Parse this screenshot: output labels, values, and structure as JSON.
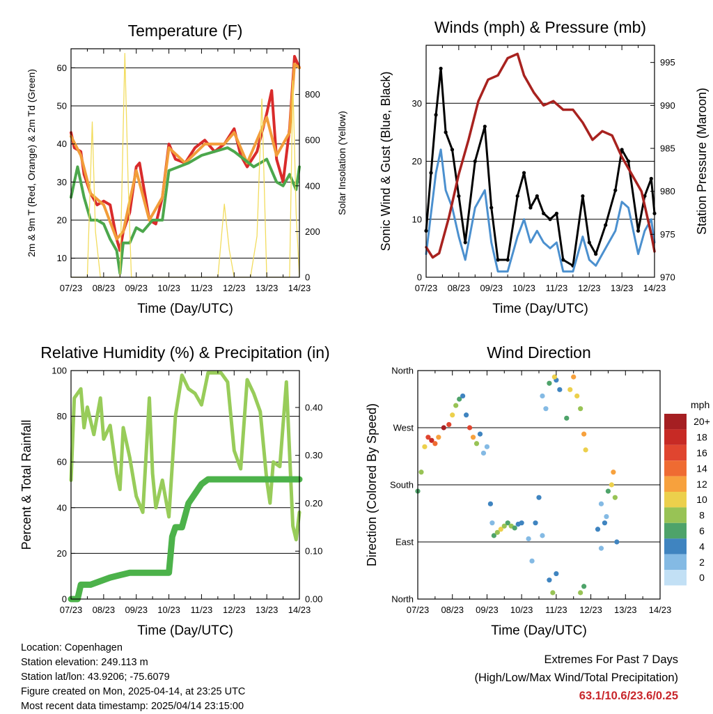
{
  "chart_data": [
    {
      "id": "temp",
      "type": "line",
      "title": "Temperature (F)",
      "xlabel": "Time (Day/UTC)",
      "ylabel_left": "2m & 9m T (Red, Orange) & 2m Td (Green)",
      "ylabel_right": "Solar Insolation (Yellow)",
      "categories": [
        "07/23",
        "08/23",
        "09/23",
        "10/23",
        "11/23",
        "12/23",
        "13/23",
        "14/23"
      ],
      "xlim": [
        0,
        7
      ],
      "ylim": [
        5,
        65
      ],
      "yticks": [
        10,
        20,
        30,
        40,
        50,
        60
      ],
      "ylim_right": [
        0,
        1000
      ],
      "yticks_right": [
        0,
        200,
        400,
        600,
        800
      ],
      "series": [
        {
          "name": "2m T",
          "color": "#d92b2b",
          "x": [
            0,
            0.1,
            0.3,
            0.4,
            0.6,
            0.8,
            1.0,
            1.2,
            1.4,
            1.5,
            1.6,
            1.8,
            2.0,
            2.1,
            2.2,
            2.4,
            2.6,
            2.8,
            3.0,
            3.2,
            3.5,
            3.8,
            4.1,
            4.4,
            4.7,
            5.0,
            5.2,
            5.4,
            5.7,
            6.0,
            6.15,
            6.3,
            6.5,
            6.7,
            6.85,
            7.0
          ],
          "y": [
            43,
            39,
            38,
            32,
            27,
            24,
            25,
            24,
            15,
            12,
            17,
            22,
            34,
            35,
            30,
            20,
            19,
            26,
            40,
            36,
            35,
            39,
            41,
            38,
            40,
            44,
            37,
            34,
            38,
            48,
            54,
            36,
            30,
            44,
            63,
            60
          ]
        },
        {
          "name": "9m T",
          "color": "#f29d3a",
          "x": [
            0,
            0.3,
            0.6,
            1.0,
            1.4,
            1.6,
            2.0,
            2.4,
            2.8,
            3.0,
            3.5,
            4.1,
            4.7,
            5.0,
            5.4,
            6.0,
            6.3,
            6.7,
            6.85,
            7.0
          ],
          "y": [
            42,
            37,
            27,
            24,
            15,
            17,
            33,
            20,
            26,
            39,
            35,
            40,
            40,
            43,
            35,
            47,
            37,
            43,
            61,
            60
          ]
        },
        {
          "name": "2m Td",
          "color": "#4ca74c",
          "x": [
            0,
            0.2,
            0.4,
            0.6,
            0.8,
            1.0,
            1.2,
            1.4,
            1.5,
            1.6,
            1.8,
            2.0,
            2.2,
            2.5,
            2.8,
            3.0,
            3.3,
            3.6,
            4.0,
            4.4,
            4.8,
            5.0,
            5.3,
            5.6,
            6.0,
            6.3,
            6.5,
            6.7,
            6.9,
            7.0
          ],
          "y": [
            26,
            34,
            26,
            20,
            20,
            19,
            15,
            12,
            6,
            14,
            14,
            18,
            17,
            20,
            20,
            33,
            34,
            35,
            37,
            38,
            39,
            38,
            36,
            34,
            36,
            30,
            29,
            32,
            28,
            34
          ]
        },
        {
          "name": "Solar Insolation",
          "color": "#f2dc5d",
          "axis": "right",
          "x": [
            0,
            0.3,
            0.5,
            0.65,
            0.75,
            0.9,
            1.1,
            1.3,
            1.5,
            1.65,
            1.75,
            1.85,
            2.05,
            2.2,
            2.5,
            3.0,
            3.5,
            4.0,
            4.5,
            4.7,
            4.85,
            5.0,
            5.5,
            5.7,
            5.85,
            6.0,
            6.3,
            6.5,
            6.7,
            6.8,
            6.9,
            7.0
          ],
          "y": [
            0,
            0,
            0,
            680,
            200,
            0,
            0,
            0,
            0,
            980,
            420,
            0,
            0,
            0,
            0,
            0,
            0,
            0,
            0,
            320,
            120,
            0,
            0,
            180,
            780,
            0,
            0,
            0,
            0,
            860,
            280,
            0
          ]
        }
      ]
    },
    {
      "id": "wind",
      "type": "line",
      "title": "Winds (mph) & Pressure (mb)",
      "xlabel": "Time (Day/UTC)",
      "ylabel_left": "Sonic Wind & Gust (Blue, Black)",
      "ylabel_right": "Station Pressure (Maroon)",
      "categories": [
        "07/23",
        "08/23",
        "09/23",
        "10/23",
        "11/23",
        "12/23",
        "13/23",
        "14/23"
      ],
      "xlim": [
        0,
        7
      ],
      "ylim": [
        0,
        40
      ],
      "yticks": [
        0,
        10,
        20,
        30
      ],
      "ylim_right": [
        970,
        997
      ],
      "yticks_right": [
        970,
        975,
        980,
        985,
        990,
        995
      ],
      "series": [
        {
          "name": "Gust",
          "color": "#000000",
          "x": [
            0,
            0.15,
            0.3,
            0.45,
            0.6,
            0.8,
            1.0,
            1.2,
            1.5,
            1.8,
            2.0,
            2.2,
            2.5,
            2.8,
            3.0,
            3.2,
            3.4,
            3.6,
            3.8,
            4.0,
            4.2,
            4.5,
            4.8,
            5.0,
            5.2,
            5.5,
            5.8,
            6.0,
            6.2,
            6.5,
            6.7,
            6.9,
            7.0
          ],
          "y": [
            8,
            18,
            28,
            36,
            25,
            22,
            14,
            6,
            20,
            26,
            12,
            3,
            3,
            14,
            18,
            12,
            14,
            11,
            10,
            11,
            3,
            2,
            14,
            6,
            4,
            9,
            15,
            22,
            20,
            8,
            14,
            17,
            11
          ]
        },
        {
          "name": "Wind",
          "color": "#4b90cf",
          "x": [
            0,
            0.15,
            0.3,
            0.45,
            0.6,
            0.8,
            1.0,
            1.2,
            1.5,
            1.8,
            2.0,
            2.2,
            2.5,
            2.8,
            3.0,
            3.2,
            3.4,
            3.6,
            3.8,
            4.0,
            4.2,
            4.5,
            4.8,
            5.0,
            5.2,
            5.5,
            5.8,
            6.0,
            6.2,
            6.5,
            6.7,
            6.9,
            7.0
          ],
          "y": [
            4,
            11,
            18,
            22,
            15,
            12,
            7,
            3,
            12,
            15,
            6,
            1,
            1,
            7,
            10,
            6,
            8,
            6,
            5,
            6,
            1,
            1,
            7,
            3,
            2,
            5,
            8,
            13,
            12,
            4,
            8,
            10,
            6
          ]
        },
        {
          "name": "Pressure",
          "color": "#a8221f",
          "axis": "right",
          "x": [
            0,
            0.2,
            0.4,
            0.7,
            1.0,
            1.3,
            1.6,
            1.9,
            2.2,
            2.5,
            2.8,
            3.0,
            3.3,
            3.6,
            3.9,
            4.2,
            4.5,
            4.8,
            5.1,
            5.4,
            5.7,
            6.0,
            6.3,
            6.6,
            6.9,
            7.0
          ],
          "y": [
            973.5,
            972.3,
            972.8,
            977,
            982,
            986,
            990.5,
            993,
            993.5,
            995.5,
            996,
            993.5,
            991.5,
            990,
            990.5,
            989.5,
            989.5,
            988,
            986,
            987,
            986.5,
            984,
            982,
            980,
            975,
            973
          ]
        }
      ]
    },
    {
      "id": "rh",
      "type": "line",
      "title": "Relative Humidity (%) & Precipitation (in)",
      "xlabel": "Time (Day/UTC)",
      "ylabel_left": "Percent & Total Rainfall",
      "categories": [
        "07/23",
        "08/23",
        "09/23",
        "10/23",
        "11/23",
        "12/23",
        "13/23",
        "14/23"
      ],
      "xlim": [
        0,
        7
      ],
      "ylim": [
        0,
        100
      ],
      "yticks": [
        0,
        20,
        40,
        60,
        80,
        100
      ],
      "ylim_right": [
        0,
        0.477
      ],
      "yticks_right": [
        "0.00",
        "0.10",
        "0.20",
        "0.30",
        "0.40"
      ],
      "series": [
        {
          "name": "Relative Humidity",
          "color": "#98cc5a",
          "x": [
            0,
            0.1,
            0.3,
            0.4,
            0.5,
            0.7,
            0.9,
            1.0,
            1.2,
            1.4,
            1.5,
            1.6,
            1.8,
            2.0,
            2.2,
            2.4,
            2.5,
            2.6,
            2.8,
            3.0,
            3.2,
            3.4,
            3.6,
            3.8,
            4.0,
            4.2,
            4.4,
            4.6,
            4.8,
            5.0,
            5.2,
            5.4,
            5.6,
            5.8,
            6.0,
            6.1,
            6.2,
            6.4,
            6.6,
            6.8,
            6.9,
            7.0
          ],
          "y": [
            52,
            88,
            92,
            75,
            84,
            72,
            88,
            70,
            76,
            55,
            48,
            75,
            62,
            45,
            38,
            88,
            55,
            40,
            52,
            36,
            80,
            98,
            92,
            90,
            85,
            99,
            99,
            99,
            95,
            65,
            57,
            96,
            90,
            82,
            52,
            42,
            60,
            58,
            95,
            32,
            26,
            38
          ]
        },
        {
          "name": "Total Rainfall",
          "color": "#4cb24a",
          "axis": "right",
          "x": [
            0,
            0.2,
            0.3,
            0.6,
            1.0,
            1.2,
            1.5,
            1.8,
            2.2,
            2.5,
            2.8,
            3.0,
            3.1,
            3.2,
            3.4,
            3.6,
            3.8,
            4.0,
            4.2,
            4.5,
            5.0,
            5.5,
            6.0,
            6.5,
            7.0
          ],
          "y": [
            0,
            0,
            0.03,
            0.03,
            0.04,
            0.045,
            0.05,
            0.055,
            0.055,
            0.055,
            0.055,
            0.055,
            0.13,
            0.15,
            0.15,
            0.2,
            0.22,
            0.24,
            0.25,
            0.25,
            0.25,
            0.25,
            0.25,
            0.25,
            0.25
          ]
        }
      ]
    },
    {
      "id": "dir",
      "type": "scatter",
      "title": "Wind Direction",
      "xlabel": "Time (Day/UTC)",
      "ylabel_left": "Direction (Colored By Speed)",
      "categories": [
        "07/23",
        "08/23",
        "09/23",
        "10/23",
        "11/23",
        "12/23",
        "13/23",
        "14/23"
      ],
      "xlim": [
        0,
        7
      ],
      "ylim": [
        0,
        360
      ],
      "yticklabels": [
        "North",
        "East",
        "South",
        "West",
        "North"
      ],
      "yticks": [
        0,
        90,
        180,
        270,
        360
      ],
      "legend_title": "mph",
      "legend_labels": [
        "20+",
        "18",
        "16",
        "14",
        "12",
        "10",
        "8",
        "6",
        "4",
        "2",
        "0"
      ],
      "legend_colors": [
        "#a51f22",
        "#c72a25",
        "#e0452f",
        "#ef6b32",
        "#f7a13d",
        "#ecd04c",
        "#98c355",
        "#4ea36a",
        "#3f84c0",
        "#84bae4",
        "#c2e0f5"
      ],
      "points": [
        {
          "x": 0,
          "y": 170,
          "s": 6
        },
        {
          "x": 0.1,
          "y": 200,
          "s": 8
        },
        {
          "x": 0.2,
          "y": 240,
          "s": 10
        },
        {
          "x": 0.3,
          "y": 255,
          "s": 16
        },
        {
          "x": 0.4,
          "y": 250,
          "s": 18
        },
        {
          "x": 0.5,
          "y": 245,
          "s": 14
        },
        {
          "x": 0.6,
          "y": 255,
          "s": 12
        },
        {
          "x": 0.75,
          "y": 270,
          "s": 20
        },
        {
          "x": 0.9,
          "y": 275,
          "s": 16
        },
        {
          "x": 1.0,
          "y": 290,
          "s": 10
        },
        {
          "x": 1.1,
          "y": 305,
          "s": 8
        },
        {
          "x": 1.2,
          "y": 315,
          "s": 6
        },
        {
          "x": 1.3,
          "y": 320,
          "s": 4
        },
        {
          "x": 1.4,
          "y": 290,
          "s": 4
        },
        {
          "x": 1.5,
          "y": 270,
          "s": 16
        },
        {
          "x": 1.6,
          "y": 255,
          "s": 12
        },
        {
          "x": 1.7,
          "y": 245,
          "s": 8
        },
        {
          "x": 1.8,
          "y": 260,
          "s": 4
        },
        {
          "x": 1.9,
          "y": 230,
          "s": 2
        },
        {
          "x": 2.0,
          "y": 240,
          "s": 2
        },
        {
          "x": 2.1,
          "y": 150,
          "s": 4
        },
        {
          "x": 2.15,
          "y": 120,
          "s": 2
        },
        {
          "x": 2.2,
          "y": 100,
          "s": 6
        },
        {
          "x": 2.3,
          "y": 105,
          "s": 8
        },
        {
          "x": 2.4,
          "y": 110,
          "s": 10
        },
        {
          "x": 2.5,
          "y": 115,
          "s": 8
        },
        {
          "x": 2.6,
          "y": 120,
          "s": 6
        },
        {
          "x": 2.7,
          "y": 115,
          "s": 8
        },
        {
          "x": 2.8,
          "y": 112,
          "s": 6
        },
        {
          "x": 2.9,
          "y": 118,
          "s": 4
        },
        {
          "x": 3.0,
          "y": 120,
          "s": 4
        },
        {
          "x": 3.2,
          "y": 95,
          "s": 2
        },
        {
          "x": 3.3,
          "y": 60,
          "s": 2
        },
        {
          "x": 3.4,
          "y": 120,
          "s": 4
        },
        {
          "x": 3.5,
          "y": 160,
          "s": 4
        },
        {
          "x": 3.6,
          "y": 100,
          "s": 2
        },
        {
          "x": 3.8,
          "y": 30,
          "s": 4
        },
        {
          "x": 3.9,
          "y": 10,
          "s": 8
        },
        {
          "x": 4.0,
          "y": 40,
          "s": 4
        },
        {
          "x": 4.0,
          "y": 345,
          "s": 4
        },
        {
          "x": 3.6,
          "y": 320,
          "s": 2
        },
        {
          "x": 3.7,
          "y": 300,
          "s": 2
        },
        {
          "x": 3.8,
          "y": 340,
          "s": 6
        },
        {
          "x": 3.95,
          "y": 350,
          "s": 10
        },
        {
          "x": 4.1,
          "y": 330,
          "s": 4
        },
        {
          "x": 4.3,
          "y": 285,
          "s": 6
        },
        {
          "x": 4.4,
          "y": 330,
          "s": 10
        },
        {
          "x": 4.5,
          "y": 350,
          "s": 12
        },
        {
          "x": 4.6,
          "y": 320,
          "s": 10
        },
        {
          "x": 4.7,
          "y": 300,
          "s": 8
        },
        {
          "x": 4.8,
          "y": 260,
          "s": 12
        },
        {
          "x": 4.85,
          "y": 235,
          "s": 10
        },
        {
          "x": 4.7,
          "y": 10,
          "s": 8
        },
        {
          "x": 4.8,
          "y": 20,
          "s": 6
        },
        {
          "x": 5.2,
          "y": 110,
          "s": 4
        },
        {
          "x": 5.3,
          "y": 80,
          "s": 2
        },
        {
          "x": 5.4,
          "y": 120,
          "s": 4
        },
        {
          "x": 5.5,
          "y": 170,
          "s": 6
        },
        {
          "x": 5.6,
          "y": 180,
          "s": 10
        },
        {
          "x": 5.65,
          "y": 200,
          "s": 12
        },
        {
          "x": 5.7,
          "y": 160,
          "s": 8
        },
        {
          "x": 5.75,
          "y": 90,
          "s": 4
        },
        {
          "x": 5.3,
          "y": 150,
          "s": 2
        },
        {
          "x": 5.45,
          "y": 130,
          "s": 2
        }
      ]
    }
  ],
  "info": {
    "location": "Location: Copenhagen",
    "elevation": "Station elevation: 249.113 m",
    "latlon": "Station lat/lon: 43.9206; -75.6079",
    "created": "Figure created on Mon, 2025-04-14, at 23:25 UTC",
    "recent": "Most recent data timestamp: 2025/04/14 23:15:00"
  },
  "extremes": {
    "title": "Extremes For Past 7 Days",
    "subtitle": "(High/Low/Max Wind/Total Precipitation)",
    "values": "63.1/10.6/23.6/0.25"
  }
}
